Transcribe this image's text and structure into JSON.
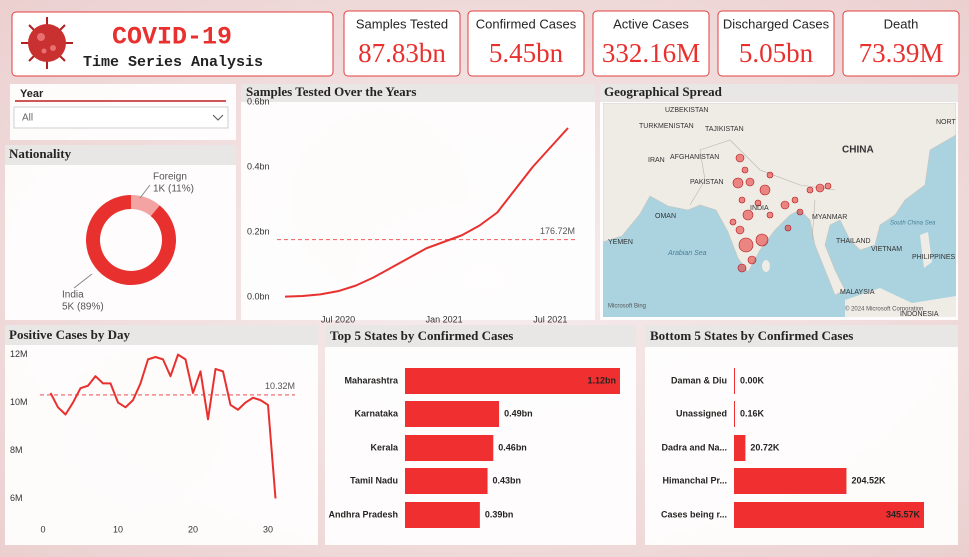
{
  "header": {
    "title": "COVID-19",
    "subtitle": "Time Series Analysis"
  },
  "kpis": [
    {
      "label": "Samples Tested",
      "value": "87.83bn"
    },
    {
      "label": "Confirmed Cases",
      "value": "5.45bn"
    },
    {
      "label": "Active Cases",
      "value": "332.16M"
    },
    {
      "label": "Discharged Cases",
      "value": "5.05bn"
    },
    {
      "label": "Death",
      "value": "73.39M"
    }
  ],
  "slicer": {
    "label": "Year",
    "value": "All"
  },
  "map": {
    "title": "Geographical Spread",
    "labels": [
      "UZBEKISTAN",
      "TURKMENISTAN",
      "TAJIKISTAN",
      "IRAN",
      "AFGHANISTAN",
      "PAKISTAN",
      "CHINA",
      "NORT",
      "INDIA",
      "MYANMAR",
      "OMAN",
      "YEMEN",
      "Arabian Sea",
      "THAILAND",
      "VIETNAM",
      "South China Sea",
      "PHILIPPINES",
      "MALAYSIA",
      "INDONESIA"
    ],
    "attribution": [
      "Microsoft Bing",
      "© 2024 Microsoft Corporation"
    ]
  },
  "chart_data": [
    {
      "type": "pie",
      "title": "Nationality",
      "donut": true,
      "categories": [
        "Foreign",
        "India"
      ],
      "values": [
        11,
        89
      ],
      "value_labels": [
        "1K (11%)",
        "5K (89%)"
      ],
      "colors": [
        "#f4a3a3",
        "#e8312f"
      ]
    },
    {
      "type": "line",
      "title": "Samples Tested Over the Years",
      "x": [
        "2020-04",
        "2020-05",
        "2020-06",
        "2020-07",
        "2020-08",
        "2020-09",
        "2020-10",
        "2020-11",
        "2020-12",
        "2021-01",
        "2021-02",
        "2021-03",
        "2021-04",
        "2021-05",
        "2021-06",
        "2021-07",
        "2021-08"
      ],
      "values": [
        0.001,
        0.003,
        0.008,
        0.018,
        0.035,
        0.06,
        0.09,
        0.12,
        0.15,
        0.17,
        0.19,
        0.22,
        0.26,
        0.33,
        0.4,
        0.46,
        0.52
      ],
      "color": "#e8312f",
      "ylim": [
        -0.04,
        0.6
      ],
      "yticks": [
        {
          "value": 0,
          "label": "0.0bn"
        },
        {
          "value": 0.2,
          "label": "0.2bn"
        },
        {
          "value": 0.4,
          "label": "0.4bn"
        },
        {
          "value": 0.6,
          "label": "0.6bn"
        }
      ],
      "xticks": [
        {
          "value": "2020-07",
          "label": "Jul 2020"
        },
        {
          "value": "2021-01",
          "label": "Jan 2021"
        },
        {
          "value": "2021-07",
          "label": "Jul 2021"
        }
      ],
      "average": {
        "value": 0.17672,
        "label": "176.72M"
      }
    },
    {
      "type": "line",
      "title": "Positive Cases by Day",
      "x": [
        1,
        2,
        3,
        4,
        5,
        6,
        7,
        8,
        9,
        10,
        11,
        12,
        13,
        14,
        15,
        16,
        17,
        18,
        19,
        20,
        21,
        22,
        23,
        24,
        25,
        26,
        27,
        28,
        29,
        30,
        31
      ],
      "values": [
        10.4,
        9.8,
        9.5,
        10.0,
        10.6,
        10.7,
        11.1,
        10.8,
        10.8,
        10.0,
        9.8,
        10.1,
        10.8,
        11.8,
        11.9,
        11.8,
        11.1,
        12.0,
        11.8,
        10.4,
        11.3,
        9.3,
        11.4,
        11.3,
        9.9,
        9.7,
        10.0,
        10.2,
        10.1,
        9.9,
        6.0
      ],
      "color": "#e8312f",
      "xlim": [
        -4.4,
        35.6
      ],
      "xticks": [
        0,
        10,
        20,
        30
      ],
      "ylim": [
        5.1,
        12.4
      ],
      "yticks": [
        {
          "value": 6,
          "label": "6M"
        },
        {
          "value": 8,
          "label": "8M"
        },
        {
          "value": 10,
          "label": "10M"
        },
        {
          "value": 12,
          "label": "12M"
        }
      ],
      "average": {
        "value": 10.32,
        "label": "10.32M"
      }
    },
    {
      "type": "bar",
      "orientation": "horizontal",
      "title": "Top 5 States by Confirmed Cases",
      "categories": [
        "Maharashtra",
        "Karnataka",
        "Kerala",
        "Tamil Nadu",
        "Andhra Pradesh"
      ],
      "values": [
        1.12,
        0.49,
        0.46,
        0.43,
        0.39
      ],
      "value_labels": [
        "1.12bn",
        "0.49bn",
        "0.46bn",
        "0.43bn",
        "0.39bn"
      ],
      "color": "#f03030"
    },
    {
      "type": "bar",
      "orientation": "horizontal",
      "title": "Bottom 5 States by Confirmed Cases",
      "categories": [
        "Daman & Diu",
        "Unassigned",
        "Dadra and Na...",
        "Himanchal Pr...",
        "Cases being r..."
      ],
      "values": [
        0,
        0.16,
        20.72,
        204.52,
        345.57
      ],
      "value_labels": [
        "0.00K",
        "0.16K",
        "20.72K",
        "204.52K",
        "345.57K"
      ],
      "color": "#f03030"
    }
  ]
}
